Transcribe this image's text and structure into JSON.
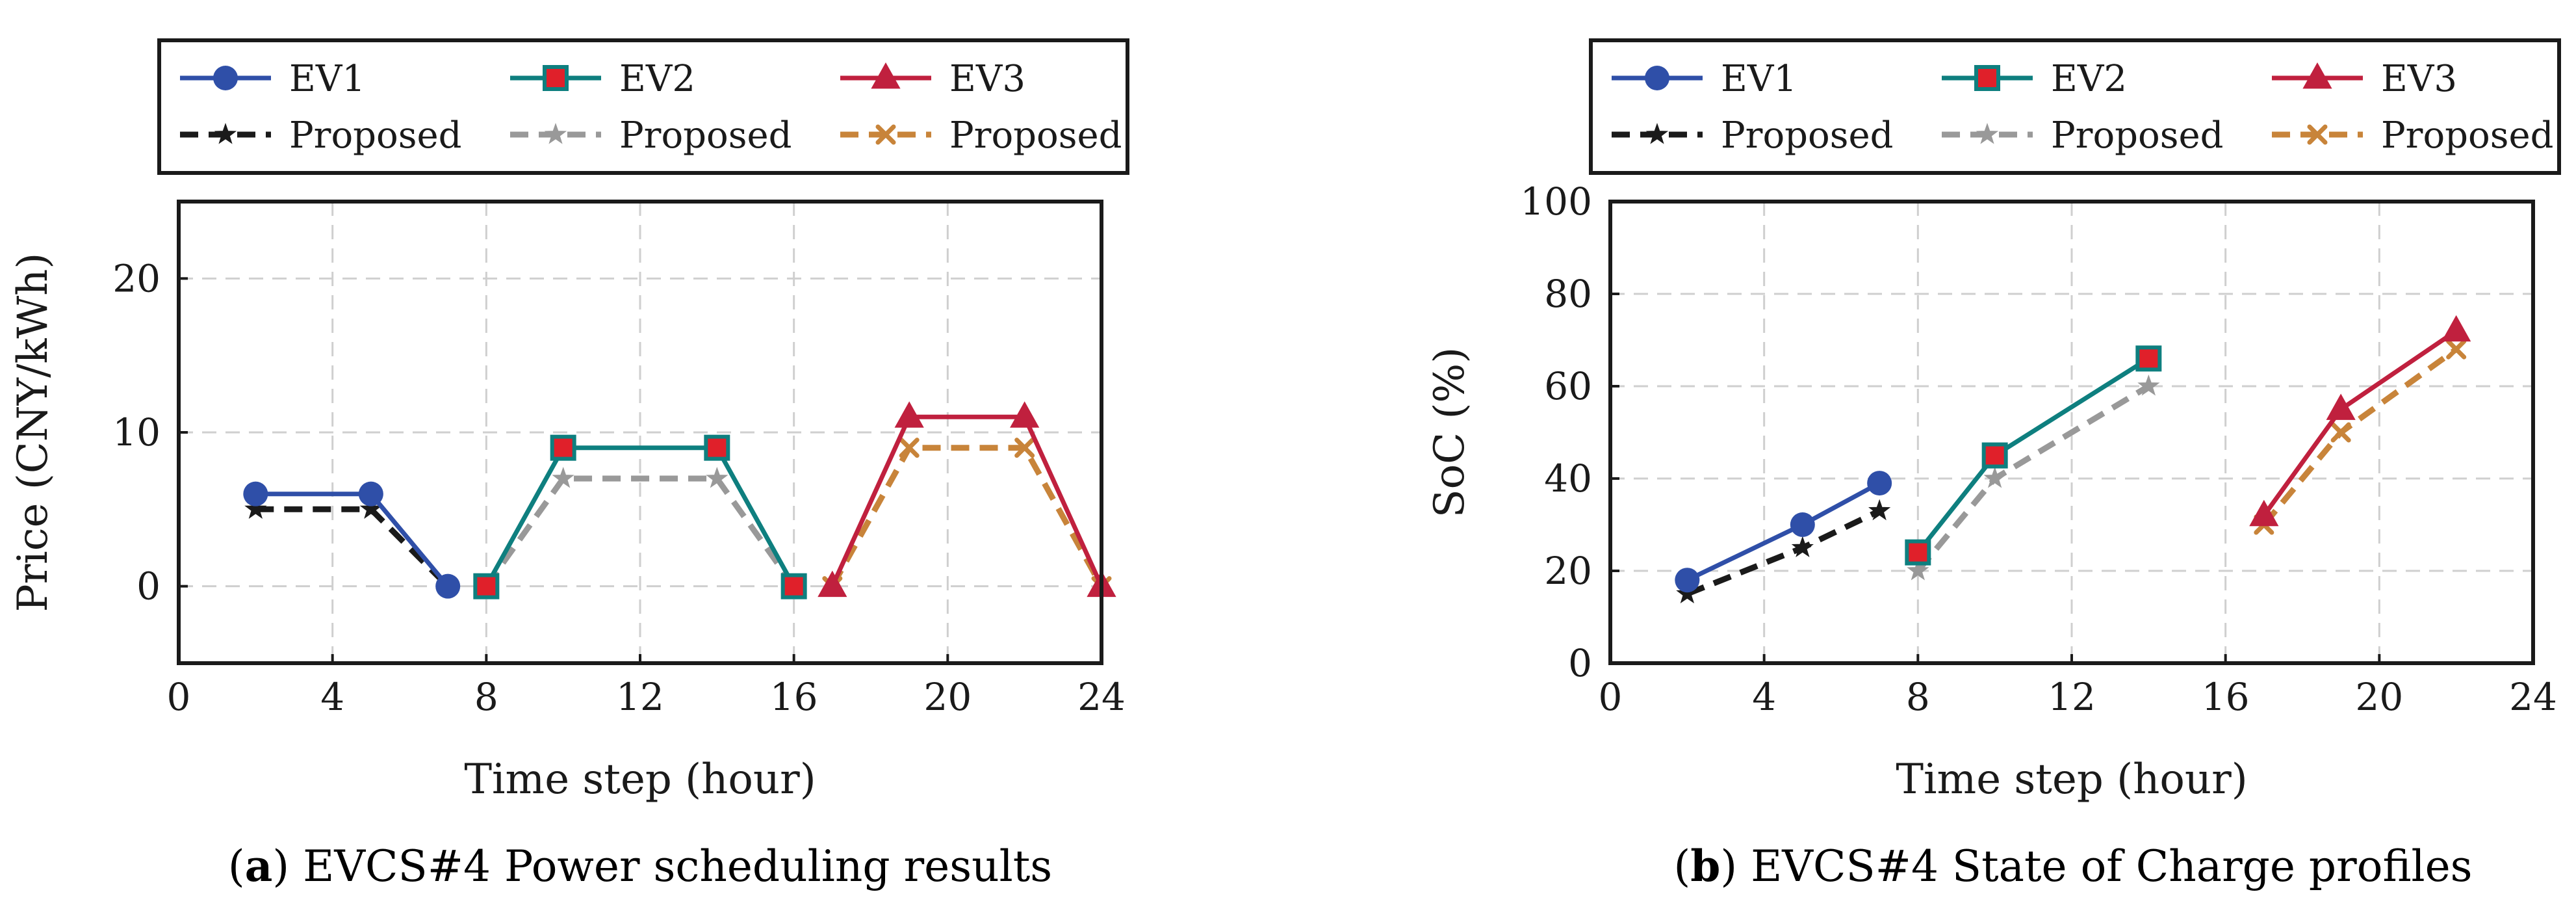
{
  "figure": {
    "panels": [
      {
        "caption_letter": "a",
        "caption_text": " EVCS#4 Power scheduling results"
      },
      {
        "caption_letter": "b",
        "caption_text": " EVCS#4 State of Charge profiles"
      }
    ]
  },
  "chart_data": [
    {
      "type": "line",
      "xlabel": "Time step (hour)",
      "ylabel": "Price (CNY/kWh)",
      "xlim": [
        0,
        24
      ],
      "ylim": [
        -5,
        25
      ],
      "xticks": [
        0,
        4,
        8,
        12,
        16,
        20,
        24
      ],
      "yticks": [
        0,
        10,
        20
      ],
      "grid": true,
      "legend_position": "top",
      "series": [
        {
          "name": "EV1",
          "color": "#2f4fa8",
          "dash": "solid",
          "marker": "circle",
          "x": [
            2,
            5,
            7
          ],
          "y": [
            6,
            6,
            0
          ]
        },
        {
          "name": "EV2",
          "color": "#0e7f7f",
          "dash": "solid",
          "marker": "square",
          "x": [
            8,
            10,
            14,
            16
          ],
          "y": [
            0,
            9,
            9,
            0
          ]
        },
        {
          "name": "EV3",
          "color": "#c0203e",
          "dash": "solid",
          "marker": "triangle",
          "x": [
            17,
            19,
            22,
            24
          ],
          "y": [
            0,
            11,
            11,
            0
          ]
        },
        {
          "name": "Proposed",
          "color": "#1a1a1a",
          "dash": "dashed",
          "marker": "star",
          "x": [
            2,
            5,
            7
          ],
          "y": [
            5,
            5,
            0
          ]
        },
        {
          "name": "Proposed",
          "color": "#999999",
          "dash": "dashed",
          "marker": "star",
          "x": [
            8,
            10,
            14,
            16
          ],
          "y": [
            0,
            7,
            7,
            0
          ]
        },
        {
          "name": "Proposed",
          "color": "#c8843a",
          "dash": "dashed",
          "marker": "cross",
          "x": [
            17,
            19,
            22,
            24
          ],
          "y": [
            0,
            9,
            9,
            0
          ]
        }
      ]
    },
    {
      "type": "line",
      "xlabel": "Time step (hour)",
      "ylabel": "SoC (%)",
      "xlim": [
        0,
        24
      ],
      "ylim": [
        0,
        100
      ],
      "xticks": [
        0,
        4,
        8,
        12,
        16,
        20,
        24
      ],
      "yticks": [
        0,
        20,
        40,
        60,
        80,
        100
      ],
      "grid": true,
      "legend_position": "top",
      "series": [
        {
          "name": "EV1",
          "color": "#2f4fa8",
          "dash": "solid",
          "marker": "circle",
          "x": [
            2,
            5,
            7
          ],
          "y": [
            18,
            30,
            39
          ]
        },
        {
          "name": "EV2",
          "color": "#0e7f7f",
          "dash": "solid",
          "marker": "square",
          "x": [
            8,
            10,
            14
          ],
          "y": [
            24,
            45,
            66
          ]
        },
        {
          "name": "EV3",
          "color": "#c0203e",
          "dash": "solid",
          "marker": "triangle",
          "x": [
            17,
            19,
            22
          ],
          "y": [
            32,
            55,
            72
          ]
        },
        {
          "name": "Proposed",
          "color": "#1a1a1a",
          "dash": "dashed",
          "marker": "star",
          "x": [
            2,
            5,
            7
          ],
          "y": [
            15,
            25,
            33
          ]
        },
        {
          "name": "Proposed",
          "color": "#999999",
          "dash": "dashed",
          "marker": "star",
          "x": [
            8,
            10,
            14
          ],
          "y": [
            20,
            40,
            60
          ]
        },
        {
          "name": "Proposed",
          "color": "#c8843a",
          "dash": "dashed",
          "marker": "cross",
          "x": [
            17,
            19,
            22
          ],
          "y": [
            30,
            50,
            68
          ]
        }
      ]
    }
  ]
}
